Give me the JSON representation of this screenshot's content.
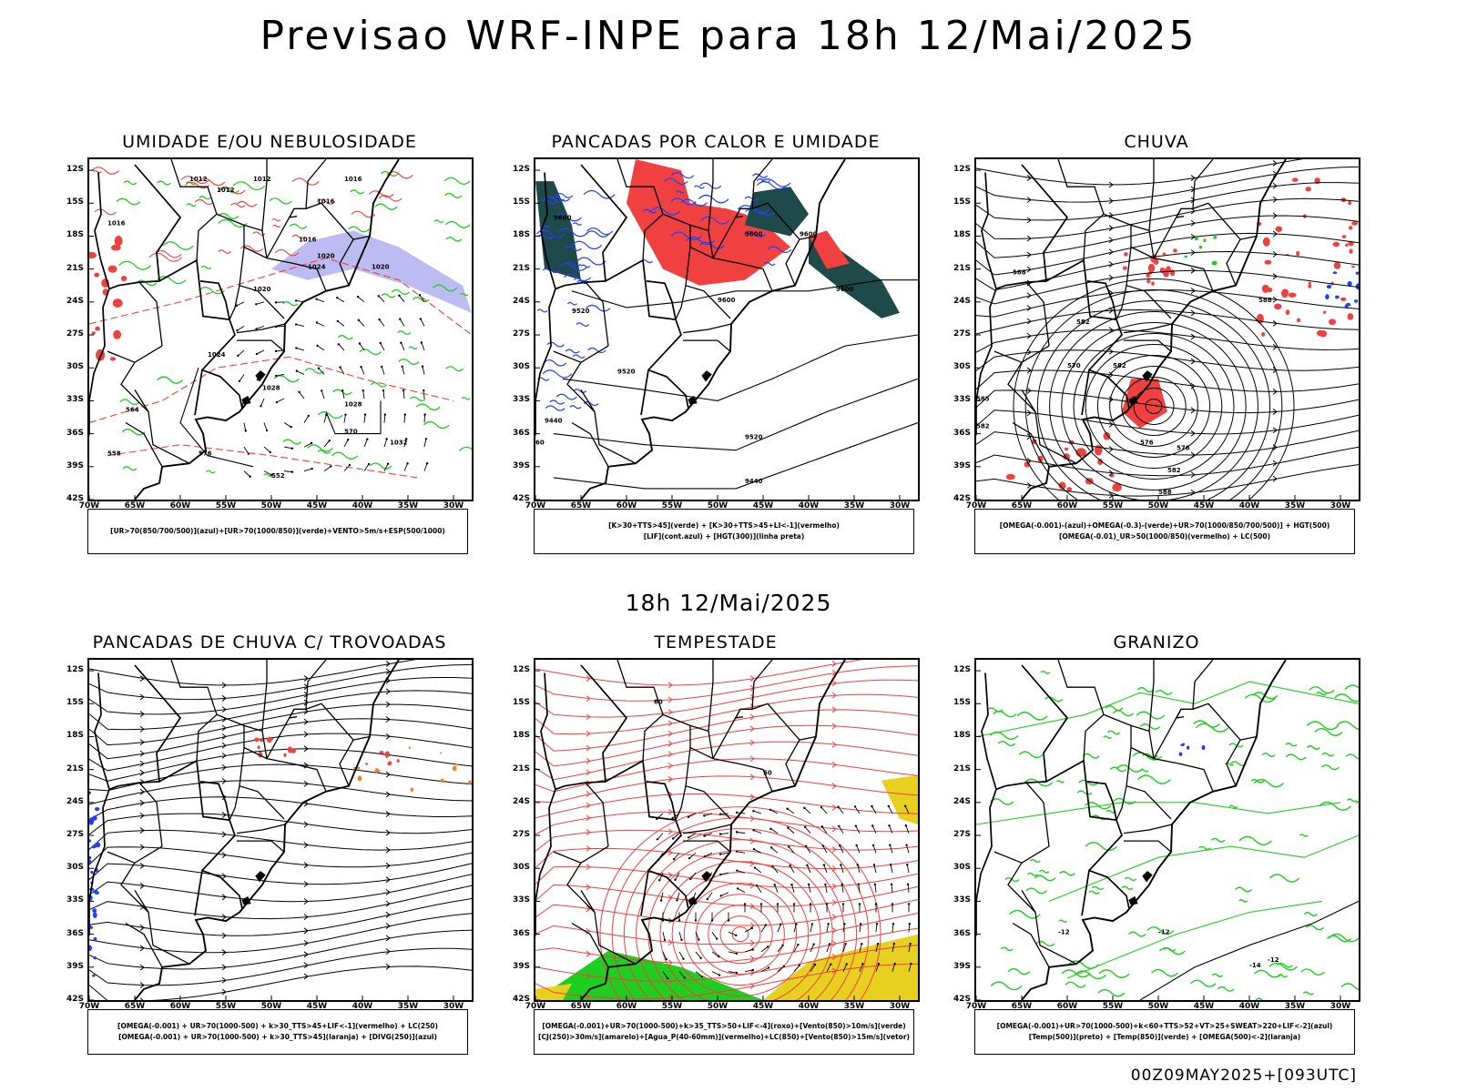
{
  "header": {
    "title": "Previsao WRF-INPE  para 18h 12/Mai/2025",
    "mid_title": "18h 12/Mai/2025",
    "run_stamp": "00Z09MAY2025+[093UTC]"
  },
  "axes": {
    "latitudes": [
      "12S",
      "15S",
      "18S",
      "21S",
      "24S",
      "27S",
      "30S",
      "33S",
      "36S",
      "39S",
      "42S"
    ],
    "longitudes": [
      "70W",
      "65W",
      "60W",
      "55W",
      "50W",
      "45W",
      "40W",
      "35W",
      "30W"
    ]
  },
  "colors": {
    "red": "#f04040",
    "green": "#1fcf1f",
    "blue": "#2040ff",
    "lavender": "#b0b0f0",
    "darkteal": "#1e4a4a",
    "orange": "#f08020",
    "yellow": "#e8d020",
    "black": "#000000"
  },
  "panels": [
    {
      "id": "umidade",
      "title": "UMIDADE E/OU NEBULOSIDADE",
      "legend": [
        "[UR>70(850/700/500)](azul)+[UR>70(1000/850)](verde)+VENTO>5m/s+ESP(500/1000)"
      ],
      "contour_labels": [
        "1012",
        "1012",
        "1012",
        "1016",
        "1016",
        "1016",
        "1016",
        "1020",
        "1020",
        "1020",
        "1024",
        "1024",
        "1028",
        "1028",
        "1032",
        "576",
        "570",
        "564",
        "558",
        "552"
      ]
    },
    {
      "id": "pancadas-calor",
      "title": "PANCADAS POR CALOR E UMIDADE",
      "legend": [
        "[K>30+TTS>45](verde) + [K>30+TTS>45+LI<-1](vermelho)",
        "[LIF](cont.azul) + [HGT(300)](linha preta)"
      ],
      "contour_labels": [
        "9600",
        "9600",
        "9600",
        "9600",
        "9600",
        "9520",
        "9520",
        "9520",
        "9440",
        "9440",
        "60"
      ]
    },
    {
      "id": "chuva",
      "title": "CHUVA",
      "legend": [
        "[OMEGA(-0.001)-(azul)+OMEGA(-0.3)-(verde)+UR>70(1000/850/700/500)] + HGT(500)",
        "[OMEGA(-0.01)_UR>50(1000/850)(vermelho) + LC(500)"
      ],
      "contour_labels": [
        "588",
        "582",
        "588",
        "582",
        "576",
        "570",
        "576",
        "582",
        "588",
        "585",
        "582"
      ]
    },
    {
      "id": "pancadas-trovoadas",
      "title": "PANCADAS DE CHUVA C/ TROVOADAS",
      "legend": [
        "[OMEGA(-0.001) + UR>70(1000-500) + k>30_TTS>45+LIF<-1](vermelho) + LC(250)",
        "[OMEGA(-0.001) + UR>70(1000-500) + k>30_TTS>45](laranja) + [DIVG(250)](azul)"
      ],
      "contour_labels": []
    },
    {
      "id": "tempestade",
      "title": "TEMPESTADE",
      "legend": [
        "[OMEGA(-0.001)+UR>70(1000-500)+k>35_TTS>50+LIF<-4](roxo)+[Vento(850)>10m/s](verde)",
        "[CJ(250)>30m/s](amarelo)+[Agua_P(40-60mm)](vermelho)+LC(850)+[Vento(850)>15m/s](vetor)"
      ],
      "contour_labels": [
        "60",
        "50"
      ]
    },
    {
      "id": "granizo",
      "title": "GRANIZO",
      "legend": [
        "[OMEGA(-0.001)+UR>70(1000-500)+k<60+TTS>52+VT>25+SWEAT>220+LIF<-2](azul)",
        "[Temp(500)](preto) + [Temp(850)](verde) + [OMEGA(500)<-2](laranja)"
      ],
      "contour_labels": [
        "-12",
        "-12",
        "-12",
        "-14"
      ]
    }
  ]
}
